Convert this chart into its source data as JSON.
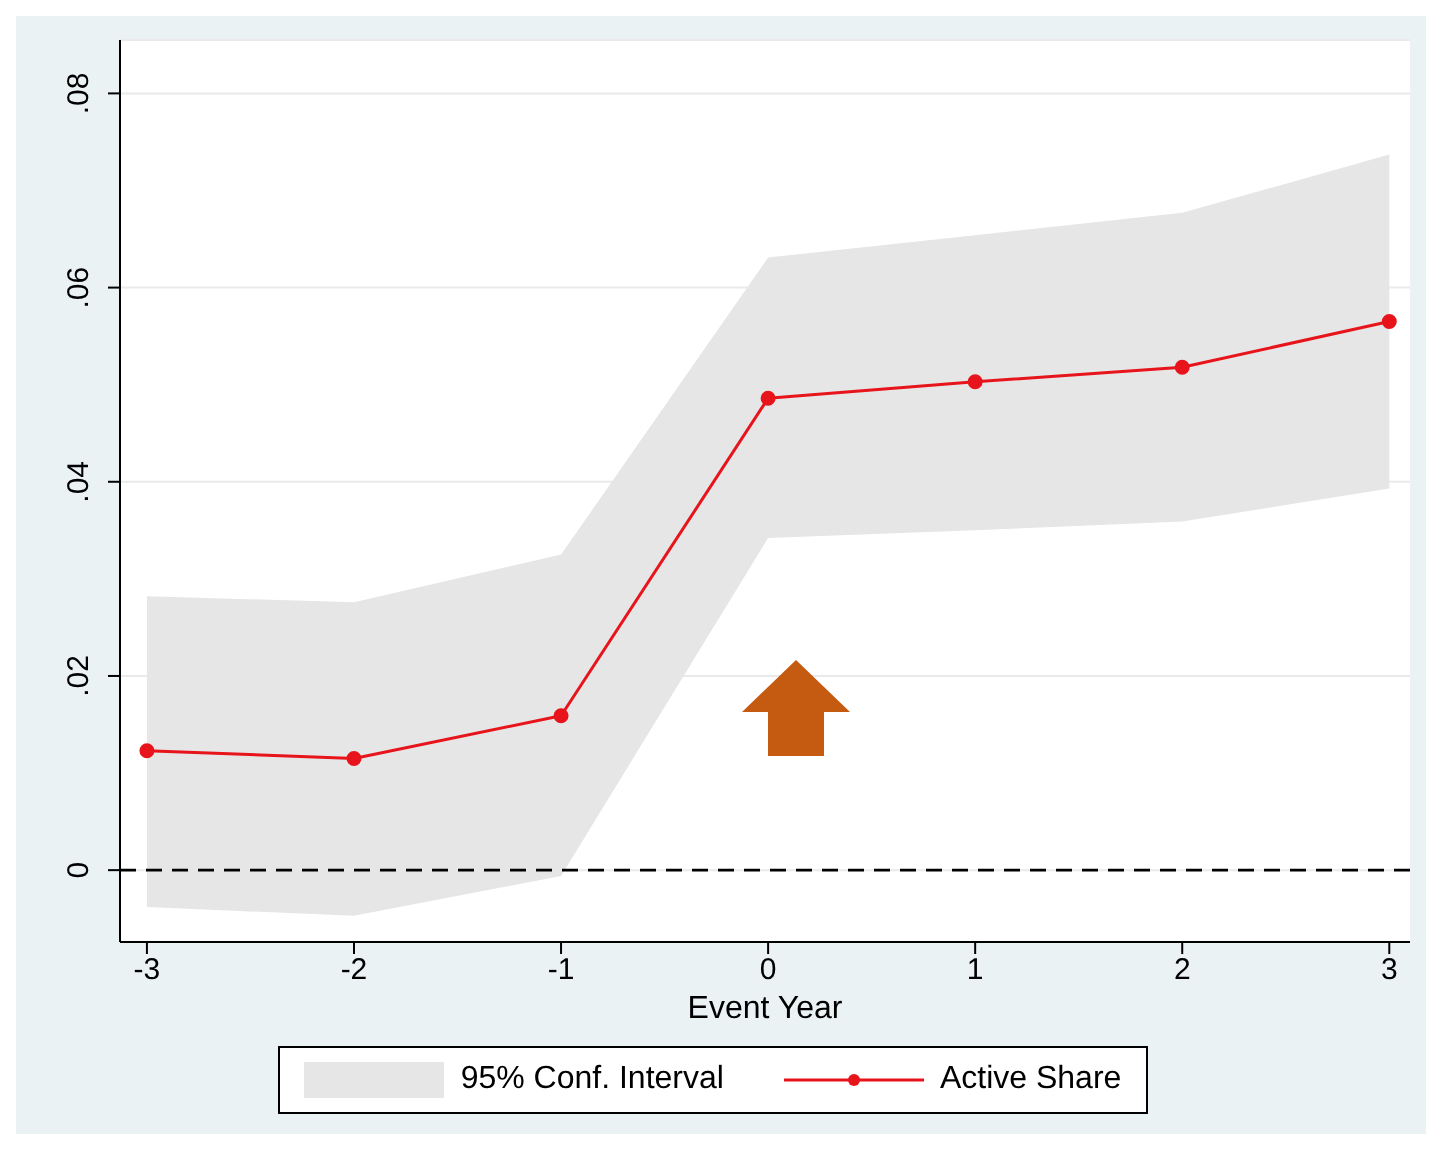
{
  "chart_data": {
    "type": "line",
    "xlabel": "Event Year",
    "x": [
      -3,
      -2,
      -1,
      0,
      1,
      2,
      3
    ],
    "series": [
      {
        "name": "Active Share",
        "color": "#e8141b",
        "values": [
          0.0123,
          0.0115,
          0.0159,
          0.0486,
          0.0503,
          0.0518,
          0.0565
        ],
        "lower": [
          -0.0038,
          -0.0047,
          -0.0006,
          0.0342,
          0.035,
          0.0359,
          0.0393
        ],
        "upper": [
          0.0282,
          0.0276,
          0.0325,
          0.0631,
          0.0654,
          0.0677,
          0.0737
        ]
      }
    ],
    "annotations": [
      "95% Conf. Interval"
    ],
    "xlim": [
      -3.13,
      3.1
    ],
    "xticks": [
      -3,
      -2,
      -1,
      0,
      1,
      2,
      3
    ],
    "ylim": [
      -0.0074,
      0.0855
    ],
    "yticks": [
      {
        "value": 0,
        "label": "0"
      },
      {
        "value": 0.02,
        "label": ".02"
      },
      {
        "value": 0.04,
        "label": ".04"
      },
      {
        "value": 0.06,
        "label": ".06"
      },
      {
        "value": 0.08,
        "label": ".08"
      }
    ],
    "ref_lines": [
      {
        "axis": "y",
        "value": 0,
        "color": "#000000",
        "line_style": "dashed"
      }
    ],
    "grid": "y",
    "legend": "bottom",
    "marker": "circle",
    "line_style": "solid"
  }
}
